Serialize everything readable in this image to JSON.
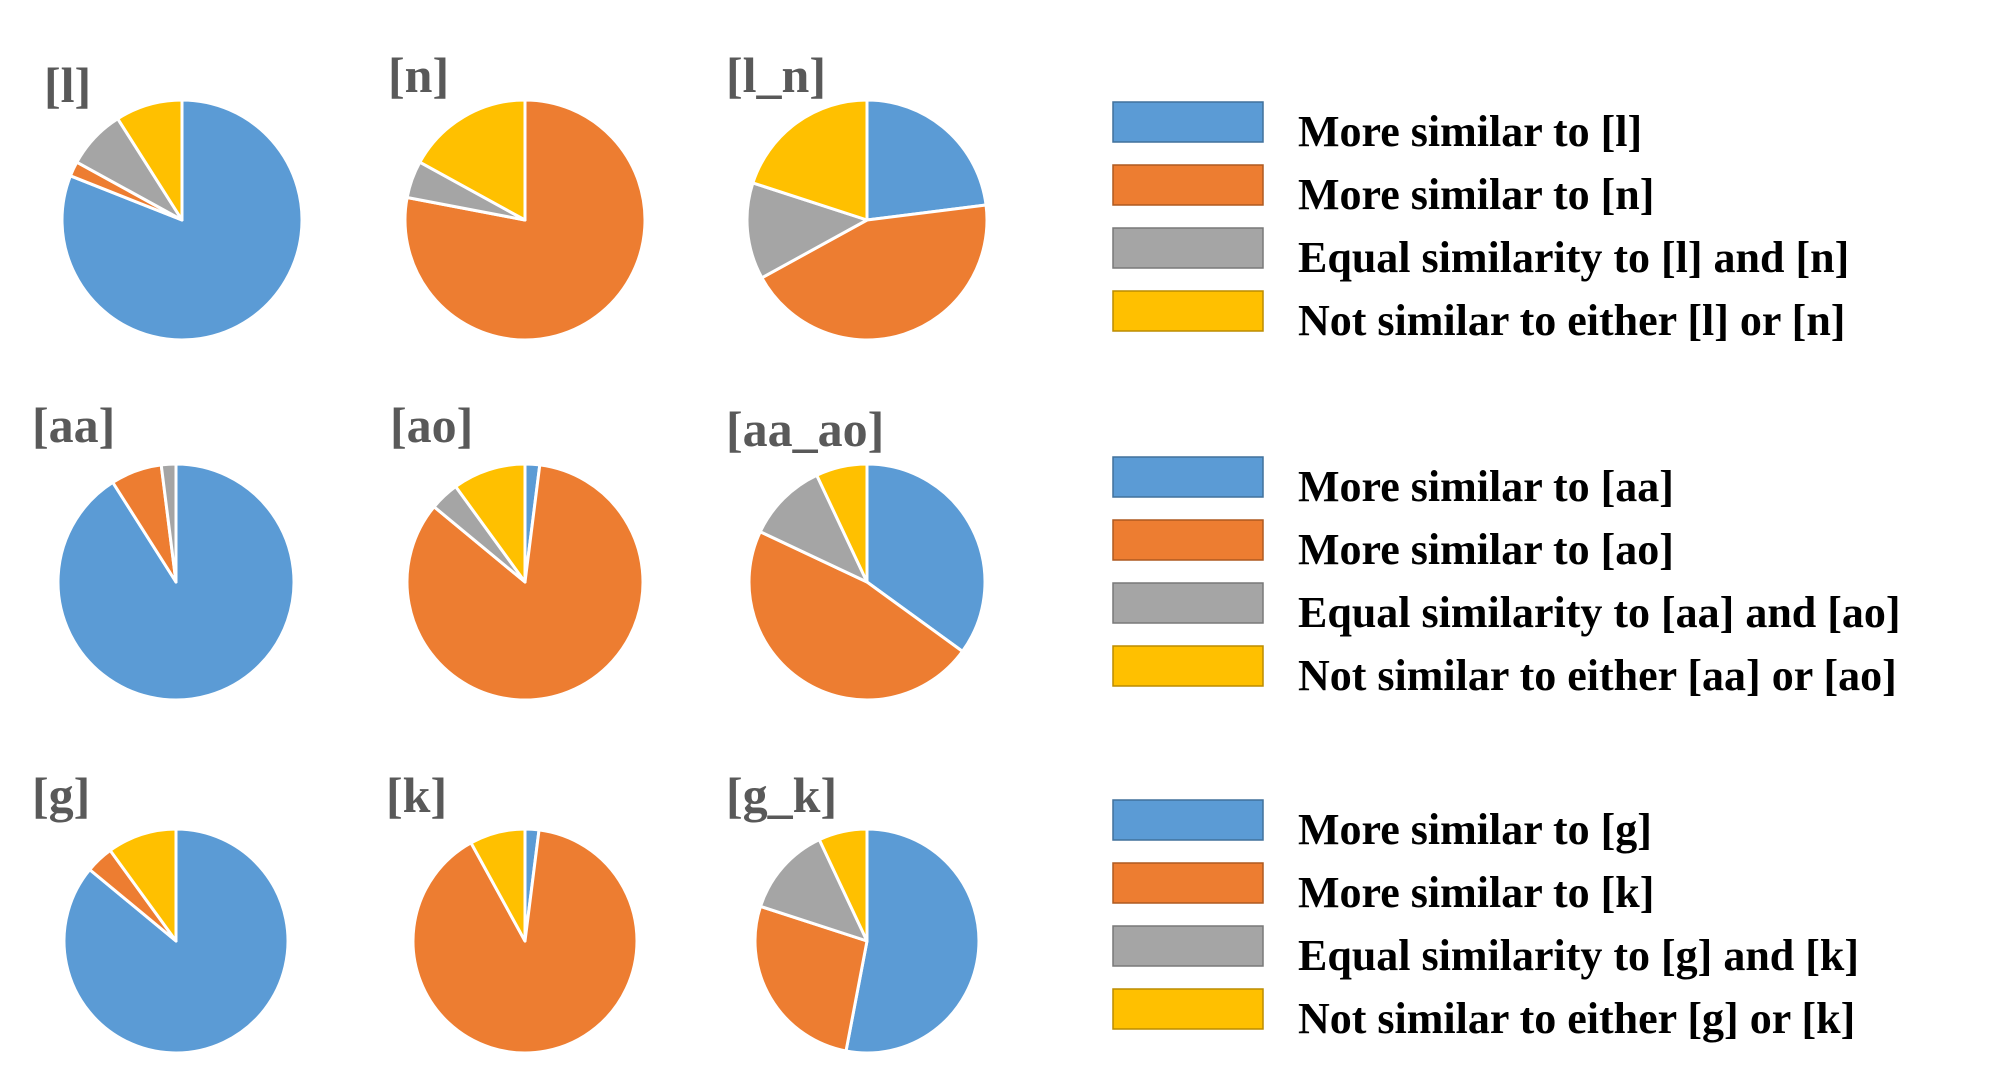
{
  "colors": {
    "blue": "#5B9BD5",
    "orange": "#ED7D31",
    "gray": "#A5A5A5",
    "yellow": "#FFC000",
    "blue_border": "#41719C",
    "orange_border": "#AE5A21",
    "gray_border": "#787878",
    "yellow_border": "#BC8C00",
    "title_color": "#595959"
  },
  "chart_data": [
    {
      "type": "pie",
      "title": "[l]",
      "slices": [
        {
          "category": "More similar to [l]",
          "value": 0.81
        },
        {
          "category": "More similar to [n]",
          "value": 0.02
        },
        {
          "category": "Equal similarity to [l] and [n]",
          "value": 0.08
        },
        {
          "category": "Not similar to either [l] or [n]",
          "value": 0.09
        }
      ]
    },
    {
      "type": "pie",
      "title": "[n]",
      "slices": [
        {
          "category": "More similar to [l]",
          "value": 0.0
        },
        {
          "category": "More similar to [n]",
          "value": 0.78
        },
        {
          "category": "Equal similarity to [l] and [n]",
          "value": 0.05
        },
        {
          "category": "Not similar to either [l] or [n]",
          "value": 0.17
        }
      ]
    },
    {
      "type": "pie",
      "title": "[l_n]",
      "slices": [
        {
          "category": "More similar to [l]",
          "value": 0.23
        },
        {
          "category": "More similar to [n]",
          "value": 0.44
        },
        {
          "category": "Equal similarity to [l] and [n]",
          "value": 0.13
        },
        {
          "category": "Not similar to either [l] or [n]",
          "value": 0.2
        }
      ]
    },
    {
      "type": "pie",
      "title": "[aa]",
      "slices": [
        {
          "category": "More similar to [aa]",
          "value": 0.91
        },
        {
          "category": "More similar to [ao]",
          "value": 0.07
        },
        {
          "category": "Equal similarity to [aa] and [ao]",
          "value": 0.02
        },
        {
          "category": "Not similar to either [aa] or [ao]",
          "value": 0.0
        }
      ]
    },
    {
      "type": "pie",
      "title": "[ao]",
      "slices": [
        {
          "category": "More similar to [aa]",
          "value": 0.02
        },
        {
          "category": "More similar to [ao]",
          "value": 0.84
        },
        {
          "category": "Equal similarity to [aa] and [ao]",
          "value": 0.04
        },
        {
          "category": "Not similar to either [aa] or [ao]",
          "value": 0.1
        }
      ]
    },
    {
      "type": "pie",
      "title": "[aa_ao]",
      "slices": [
        {
          "category": "More similar to [aa]",
          "value": 0.35
        },
        {
          "category": "More similar to [ao]",
          "value": 0.47
        },
        {
          "category": "Equal similarity to [aa] and [ao]",
          "value": 0.11
        },
        {
          "category": "Not similar to either [aa] or [ao]",
          "value": 0.07
        }
      ]
    },
    {
      "type": "pie",
      "title": "[g]",
      "slices": [
        {
          "category": "More similar to [g]",
          "value": 0.86
        },
        {
          "category": "More similar to [k]",
          "value": 0.04
        },
        {
          "category": "Equal similarity to [g] and [k]",
          "value": 0.0
        },
        {
          "category": "Not similar to either [g] or [k]",
          "value": 0.1
        }
      ]
    },
    {
      "type": "pie",
      "title": "[k]",
      "slices": [
        {
          "category": "More similar to [g]",
          "value": 0.02
        },
        {
          "category": "More similar to [k]",
          "value": 0.9
        },
        {
          "category": "Equal similarity to [g] and [k]",
          "value": 0.0
        },
        {
          "category": "Not similar to either [g] or [k]",
          "value": 0.08
        }
      ]
    },
    {
      "type": "pie",
      "title": "[g_k]",
      "slices": [
        {
          "category": "More similar to [g]",
          "value": 0.53
        },
        {
          "category": "More similar to [k]",
          "value": 0.27
        },
        {
          "category": "Equal similarity to [g] and [k]",
          "value": 0.13
        },
        {
          "category": "Not similar to either [g] or [k]",
          "value": 0.07
        }
      ]
    }
  ],
  "legends": [
    {
      "items": [
        "More similar to [l]",
        "More similar to [n]",
        "Equal similarity to [l] and [n]",
        "Not similar to either [l] or [n]"
      ]
    },
    {
      "items": [
        "More similar to [aa]",
        "More similar to [ao]",
        "Equal similarity to [aa] and [ao]",
        "Not similar to either [aa] or [ao]"
      ]
    },
    {
      "items": [
        "More similar to [g]",
        "More similar to [k]",
        "Equal similarity to [g] and [k]",
        "Not similar to either [g] or [k]"
      ]
    }
  ]
}
